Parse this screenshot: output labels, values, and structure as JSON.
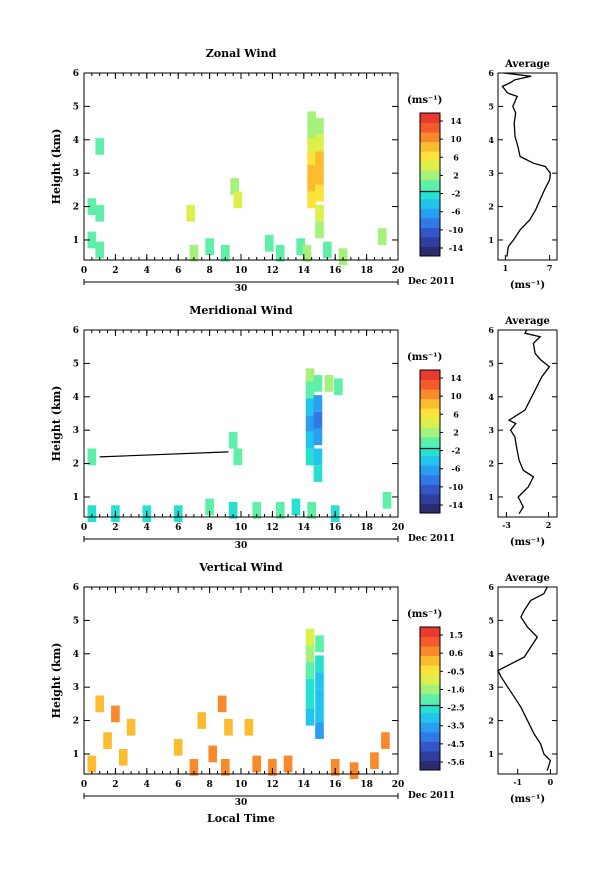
{
  "figure": {
    "date_label": "Dec 2011",
    "day_label": "30",
    "xlabel_bottom": "Local Time"
  },
  "colorbar_unit": "(ms⁻¹)",
  "colorbar_palette": [
    "#2b2c6e",
    "#2f3fa0",
    "#3357c8",
    "#2f7ae6",
    "#2a9ef0",
    "#22c3ee",
    "#27e0d0",
    "#5ef0a8",
    "#a6f07c",
    "#dcef4a",
    "#fbe33a",
    "#fcbc2f",
    "#f9892b",
    "#f45b2c",
    "#e83a2e"
  ],
  "chart_data": [
    {
      "type": "heatmap",
      "title": "Zonal Wind",
      "xlabel": "",
      "ylabel": "Height (km)",
      "x_ticks": [
        0,
        2,
        4,
        6,
        8,
        10,
        12,
        14,
        16,
        18,
        20
      ],
      "y_ticks": [
        1,
        2,
        3,
        4,
        5,
        6
      ],
      "xlim": [
        0,
        20
      ],
      "ylim": [
        0.4,
        6
      ],
      "colorbar_ticks": [
        "14",
        "10",
        "6",
        "2",
        "-2",
        "-6",
        "-10",
        "-14"
      ],
      "colorbar_range": [
        -16,
        16
      ],
      "cells": [
        [
          14.5,
          4.6,
          2
        ],
        [
          14.5,
          4.2,
          3
        ],
        [
          14.5,
          3.8,
          4
        ],
        [
          14.5,
          3.4,
          6
        ],
        [
          14.5,
          3.0,
          9
        ],
        [
          14.5,
          2.6,
          8
        ],
        [
          14.5,
          2.2,
          6
        ],
        [
          15.0,
          4.4,
          3
        ],
        [
          15.0,
          3.9,
          5
        ],
        [
          15.0,
          3.4,
          8
        ],
        [
          15.0,
          2.9,
          9
        ],
        [
          15.0,
          2.4,
          7
        ],
        [
          15.0,
          1.8,
          4
        ],
        [
          15.0,
          1.3,
          3
        ],
        [
          0.5,
          2.0,
          1
        ],
        [
          1.0,
          1.8,
          0
        ],
        [
          0.5,
          1.0,
          1
        ],
        [
          1.0,
          0.7,
          0
        ],
        [
          6.8,
          1.8,
          4
        ],
        [
          9.6,
          2.6,
          3
        ],
        [
          9.8,
          2.2,
          5
        ],
        [
          7.0,
          0.6,
          2
        ],
        [
          8.0,
          0.8,
          1
        ],
        [
          9.0,
          0.6,
          1
        ],
        [
          11.8,
          0.9,
          0
        ],
        [
          12.5,
          0.6,
          1
        ],
        [
          13.8,
          0.8,
          0
        ],
        [
          14.2,
          0.6,
          2
        ],
        [
          15.5,
          0.7,
          1
        ],
        [
          16.5,
          0.5,
          3
        ],
        [
          19.0,
          1.1,
          2
        ],
        [
          1.0,
          3.8,
          1
        ]
      ],
      "avg": {
        "title": "Average",
        "xlabel": "(ms⁻¹)",
        "x_ticks": [
          "1",
          "7"
        ],
        "xlim": [
          0,
          8
        ],
        "y_ticks": [
          1,
          2,
          3,
          4,
          5,
          6
        ],
        "ylim": [
          0.4,
          6
        ],
        "profile": [
          [
            1.2,
            0.5
          ],
          [
            1.4,
            0.8
          ],
          [
            2.1,
            1.0
          ],
          [
            3.0,
            1.3
          ],
          [
            4.3,
            1.6
          ],
          [
            5.1,
            1.9
          ],
          [
            5.7,
            2.2
          ],
          [
            6.3,
            2.5
          ],
          [
            7.0,
            2.8
          ],
          [
            7.1,
            3.0
          ],
          [
            6.4,
            3.2
          ],
          [
            4.8,
            3.3
          ],
          [
            3.0,
            3.5
          ],
          [
            2.7,
            3.8
          ],
          [
            2.3,
            4.1
          ],
          [
            2.2,
            4.5
          ],
          [
            2.4,
            4.8
          ],
          [
            2.0,
            5.0
          ],
          [
            2.6,
            5.3
          ],
          [
            1.3,
            5.4
          ],
          [
            0.6,
            5.6
          ],
          [
            1.6,
            5.7
          ],
          [
            2.3,
            5.8
          ],
          [
            4.5,
            5.9
          ],
          [
            0.8,
            6.0
          ]
        ]
      }
    },
    {
      "type": "heatmap",
      "title": "Meridional Wind",
      "xlabel": "",
      "ylabel": "Height (km)",
      "x_ticks": [
        0,
        2,
        4,
        6,
        8,
        10,
        12,
        14,
        16,
        18,
        20
      ],
      "y_ticks": [
        1,
        2,
        3,
        4,
        5,
        6
      ],
      "xlim": [
        0,
        20
      ],
      "ylim": [
        0.4,
        6
      ],
      "colorbar_ticks": [
        "14",
        "10",
        "6",
        "2",
        "-2",
        "-6",
        "-10",
        "-14"
      ],
      "colorbar_range": [
        -16,
        16
      ],
      "cells": [
        [
          14.4,
          4.6,
          2
        ],
        [
          14.4,
          4.2,
          0
        ],
        [
          14.4,
          3.7,
          -4
        ],
        [
          14.4,
          3.2,
          -6
        ],
        [
          14.4,
          2.7,
          -5
        ],
        [
          14.4,
          2.2,
          -3
        ],
        [
          14.9,
          4.4,
          1
        ],
        [
          14.9,
          3.8,
          -6
        ],
        [
          14.9,
          3.3,
          -8
        ],
        [
          14.9,
          2.8,
          -6
        ],
        [
          14.9,
          2.2,
          -4
        ],
        [
          14.9,
          1.7,
          -2
        ],
        [
          15.6,
          4.4,
          2
        ],
        [
          16.2,
          4.3,
          1
        ],
        [
          9.5,
          2.7,
          -1
        ],
        [
          9.8,
          2.2,
          -1
        ],
        [
          0.5,
          2.2,
          -1
        ],
        [
          0.5,
          0.5,
          -3
        ],
        [
          2.0,
          0.5,
          -3
        ],
        [
          4.0,
          0.5,
          -2
        ],
        [
          6.0,
          0.5,
          -3
        ],
        [
          8.0,
          0.7,
          -1
        ],
        [
          9.5,
          0.6,
          -2
        ],
        [
          11.0,
          0.6,
          -1
        ],
        [
          12.5,
          0.6,
          -1
        ],
        [
          13.5,
          0.7,
          -2
        ],
        [
          14.5,
          0.6,
          -1
        ],
        [
          16.0,
          0.5,
          -2
        ],
        [
          19.3,
          0.9,
          -1
        ]
      ],
      "line": [
        [
          1.0,
          2.2
        ],
        [
          9.2,
          2.35
        ]
      ],
      "avg": {
        "title": "Average",
        "xlabel": "(ms⁻¹)",
        "x_ticks": [
          "-3",
          "2"
        ],
        "xlim": [
          -4,
          3
        ],
        "y_ticks": [
          1,
          2,
          3,
          4,
          5,
          6
        ],
        "ylim": [
          0.4,
          6
        ],
        "profile": [
          [
            -1.5,
            0.5
          ],
          [
            -1.0,
            0.7
          ],
          [
            -1.6,
            1.0
          ],
          [
            -0.4,
            1.3
          ],
          [
            0.2,
            1.6
          ],
          [
            -1.0,
            1.8
          ],
          [
            -1.5,
            2.1
          ],
          [
            -1.8,
            2.5
          ],
          [
            -2.0,
            2.8
          ],
          [
            -2.5,
            3.0
          ],
          [
            -1.9,
            3.2
          ],
          [
            -2.7,
            3.3
          ],
          [
            -0.8,
            3.6
          ],
          [
            0.0,
            4.0
          ],
          [
            0.6,
            4.3
          ],
          [
            1.2,
            4.6
          ],
          [
            2.1,
            4.9
          ],
          [
            1.1,
            5.1
          ],
          [
            0.4,
            5.3
          ],
          [
            0.2,
            5.6
          ],
          [
            1.0,
            5.8
          ],
          [
            -0.8,
            5.9
          ],
          [
            -0.6,
            6.0
          ]
        ]
      }
    },
    {
      "type": "heatmap",
      "title": "Vertical Wind",
      "xlabel": "",
      "ylabel": "Height (km)",
      "x_ticks": [
        0,
        2,
        4,
        6,
        8,
        10,
        12,
        14,
        16,
        18,
        20
      ],
      "y_ticks": [
        1,
        2,
        3,
        4,
        5,
        6
      ],
      "xlim": [
        0,
        20
      ],
      "ylim": [
        0.4,
        6
      ],
      "colorbar_ticks": [
        "1.5",
        "0.6",
        "-0.5",
        "-1.6",
        "-2.5",
        "-3.5",
        "-4.5",
        "-5.6"
      ],
      "colorbar_range": [
        -6,
        2
      ],
      "cells": [
        [
          14.4,
          4.5,
          -1.2
        ],
        [
          14.4,
          4.0,
          -1.6
        ],
        [
          14.4,
          3.5,
          -2.0
        ],
        [
          14.4,
          3.0,
          -2.4
        ],
        [
          14.4,
          2.5,
          -2.7
        ],
        [
          14.4,
          2.1,
          -2.9
        ],
        [
          15.0,
          4.3,
          -1.8
        ],
        [
          15.0,
          3.7,
          -2.6
        ],
        [
          15.0,
          3.2,
          -3.0
        ],
        [
          15.0,
          2.7,
          -3.2
        ],
        [
          15.0,
          2.2,
          -3.3
        ],
        [
          15.0,
          1.7,
          -3.4
        ],
        [
          1.0,
          2.5,
          0.2
        ],
        [
          2.0,
          2.2,
          0.4
        ],
        [
          3.0,
          1.8,
          0.3
        ],
        [
          1.5,
          1.4,
          0.2
        ],
        [
          0.5,
          0.7,
          0.3
        ],
        [
          2.5,
          0.9,
          0.3
        ],
        [
          6.0,
          1.2,
          0.3
        ],
        [
          7.5,
          2.0,
          0.2
        ],
        [
          8.8,
          2.5,
          0.4
        ],
        [
          9.2,
          1.8,
          0.3
        ],
        [
          8.2,
          1.0,
          0.5
        ],
        [
          10.5,
          1.8,
          0.3
        ],
        [
          7.0,
          0.6,
          0.6
        ],
        [
          9.0,
          0.6,
          0.5
        ],
        [
          11.0,
          0.7,
          0.6
        ],
        [
          12.0,
          0.6,
          0.4
        ],
        [
          13.0,
          0.7,
          0.5
        ],
        [
          16.0,
          0.6,
          0.6
        ],
        [
          17.2,
          0.5,
          0.5
        ],
        [
          18.5,
          0.8,
          0.4
        ],
        [
          19.2,
          1.4,
          0.5
        ]
      ],
      "avg": {
        "title": "Average",
        "xlabel": "(ms⁻¹)",
        "x_ticks": [
          "-1",
          "0"
        ],
        "xlim": [
          -1.6,
          0.2
        ],
        "y_ticks": [
          1,
          2,
          3,
          4,
          5,
          6
        ],
        "ylim": [
          0.4,
          6
        ],
        "profile": [
          [
            -0.1,
            0.5
          ],
          [
            0.0,
            0.8
          ],
          [
            -0.2,
            1.0
          ],
          [
            -0.3,
            1.3
          ],
          [
            -0.5,
            1.6
          ],
          [
            -0.7,
            2.0
          ],
          [
            -0.9,
            2.4
          ],
          [
            -1.1,
            2.7
          ],
          [
            -1.3,
            3.0
          ],
          [
            -1.5,
            3.3
          ],
          [
            -1.6,
            3.5
          ],
          [
            -1.2,
            3.7
          ],
          [
            -0.8,
            3.9
          ],
          [
            -0.6,
            4.2
          ],
          [
            -0.4,
            4.5
          ],
          [
            -0.7,
            4.8
          ],
          [
            -0.9,
            5.1
          ],
          [
            -0.8,
            5.3
          ],
          [
            -0.6,
            5.6
          ],
          [
            -0.2,
            5.8
          ],
          [
            -0.1,
            6.0
          ]
        ]
      }
    }
  ]
}
